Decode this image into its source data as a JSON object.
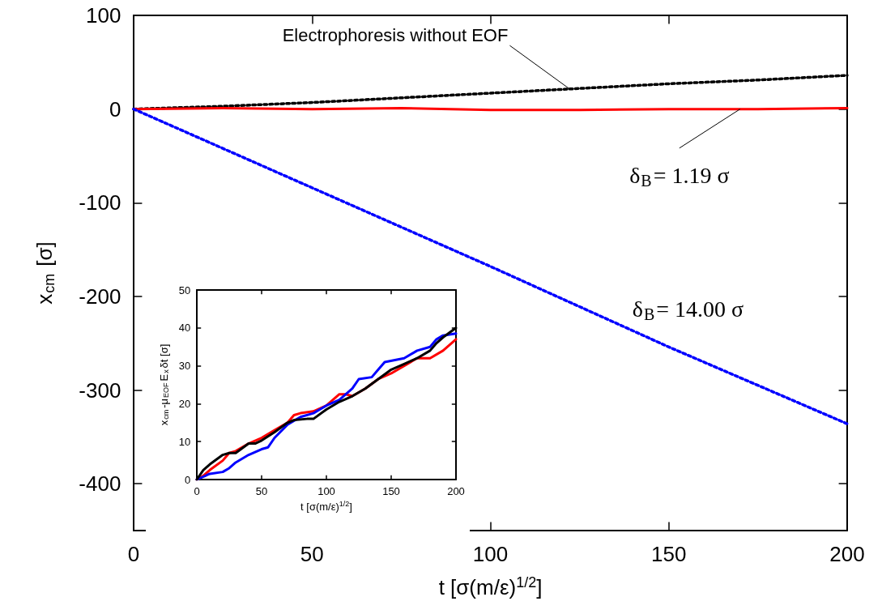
{
  "chart_data": [
    {
      "type": "line",
      "xlabel": "t [σ(m/ε)$^{1/2}$]",
      "ylabel": "x$_{cm}$ [σ]",
      "xlim": [
        0,
        200
      ],
      "xticks": [
        0,
        50,
        100,
        150,
        200
      ],
      "ylim": [
        -450,
        100
      ],
      "yticks": [
        -400,
        -300,
        -200,
        -100,
        0,
        100
      ],
      "marker": "none",
      "series": [
        {
          "color": "#000000",
          "line_style": "dotted",
          "x": [
            0,
            25,
            50,
            75,
            100,
            125,
            150,
            175,
            200
          ],
          "values": [
            0,
            3,
            7,
            12,
            17,
            22,
            27,
            31,
            36
          ]
        },
        {
          "color": "#ff0000",
          "line_style": "solid",
          "x": [
            0,
            25,
            50,
            75,
            100,
            125,
            150,
            175,
            200
          ],
          "values": [
            0,
            1,
            0,
            1,
            -1,
            -1,
            0,
            0,
            1
          ]
        },
        {
          "color": "#0000ff",
          "line_style": "dotted",
          "x": [
            0,
            50,
            100,
            150,
            200
          ],
          "values": [
            0,
            -84,
            -168,
            -254,
            -336
          ]
        }
      ],
      "annotations": [
        {
          "text": "Electrophoresis without EOF",
          "x": 122,
          "y": 22
        },
        {
          "text": "δ$_{B}$= 1.19 σ",
          "x": 170,
          "y": 0
        },
        {
          "text": "δ$_{B}$= 14.00 σ",
          "x": 150,
          "y": -254
        }
      ]
    },
    {
      "type": "line",
      "xlabel": "t [σ(m/ε)$^{1/2}$]",
      "ylabel": "x$_{cm}$-μ$_{EOF}$E$_{x}$δt [σ]",
      "xlim": [
        0,
        200
      ],
      "xticks": [
        0,
        50,
        100,
        150,
        200
      ],
      "ylim": [
        0,
        50
      ],
      "yticks": [
        0,
        10,
        20,
        30,
        40,
        50
      ],
      "line_style": "solid",
      "series": [
        {
          "color": "#ff0000",
          "x": [
            0,
            5,
            10,
            20,
            25,
            30,
            40,
            50,
            60,
            70,
            75,
            80,
            90,
            100,
            110,
            115,
            120,
            130,
            140,
            150,
            160,
            170,
            180,
            190,
            200
          ],
          "values": [
            0,
            1,
            2.5,
            5,
            7,
            7.5,
            9.5,
            11,
            13,
            15,
            17,
            17.5,
            18,
            19.5,
            22.5,
            22.5,
            22,
            24,
            26.5,
            28,
            30,
            32,
            32,
            34,
            37
          ]
        },
        {
          "color": "#0000ff",
          "x": [
            0,
            10,
            20,
            25,
            30,
            40,
            50,
            55,
            60,
            70,
            80,
            90,
            100,
            110,
            120,
            125,
            135,
            140,
            145,
            160,
            170,
            180,
            185,
            190,
            200
          ],
          "values": [
            0,
            1.5,
            2,
            3,
            4.5,
            6.5,
            8,
            8.5,
            11,
            14.5,
            16.5,
            17.5,
            19.5,
            21,
            24,
            26.5,
            27,
            29,
            31,
            32,
            34,
            35,
            37,
            38,
            38.5
          ]
        },
        {
          "color": "#000000",
          "x": [
            0,
            5,
            10,
            20,
            25,
            30,
            40,
            45,
            50,
            60,
            70,
            75,
            85,
            90,
            100,
            110,
            120,
            130,
            140,
            150,
            160,
            170,
            180,
            185,
            190,
            200
          ],
          "values": [
            0,
            2.5,
            4,
            6.5,
            7,
            7,
            9.5,
            9.5,
            10.3,
            12.5,
            15,
            15.7,
            16,
            16,
            18.5,
            20.5,
            22,
            24,
            26.5,
            29,
            30.5,
            32,
            34,
            36,
            37.5,
            40
          ]
        }
      ]
    }
  ]
}
